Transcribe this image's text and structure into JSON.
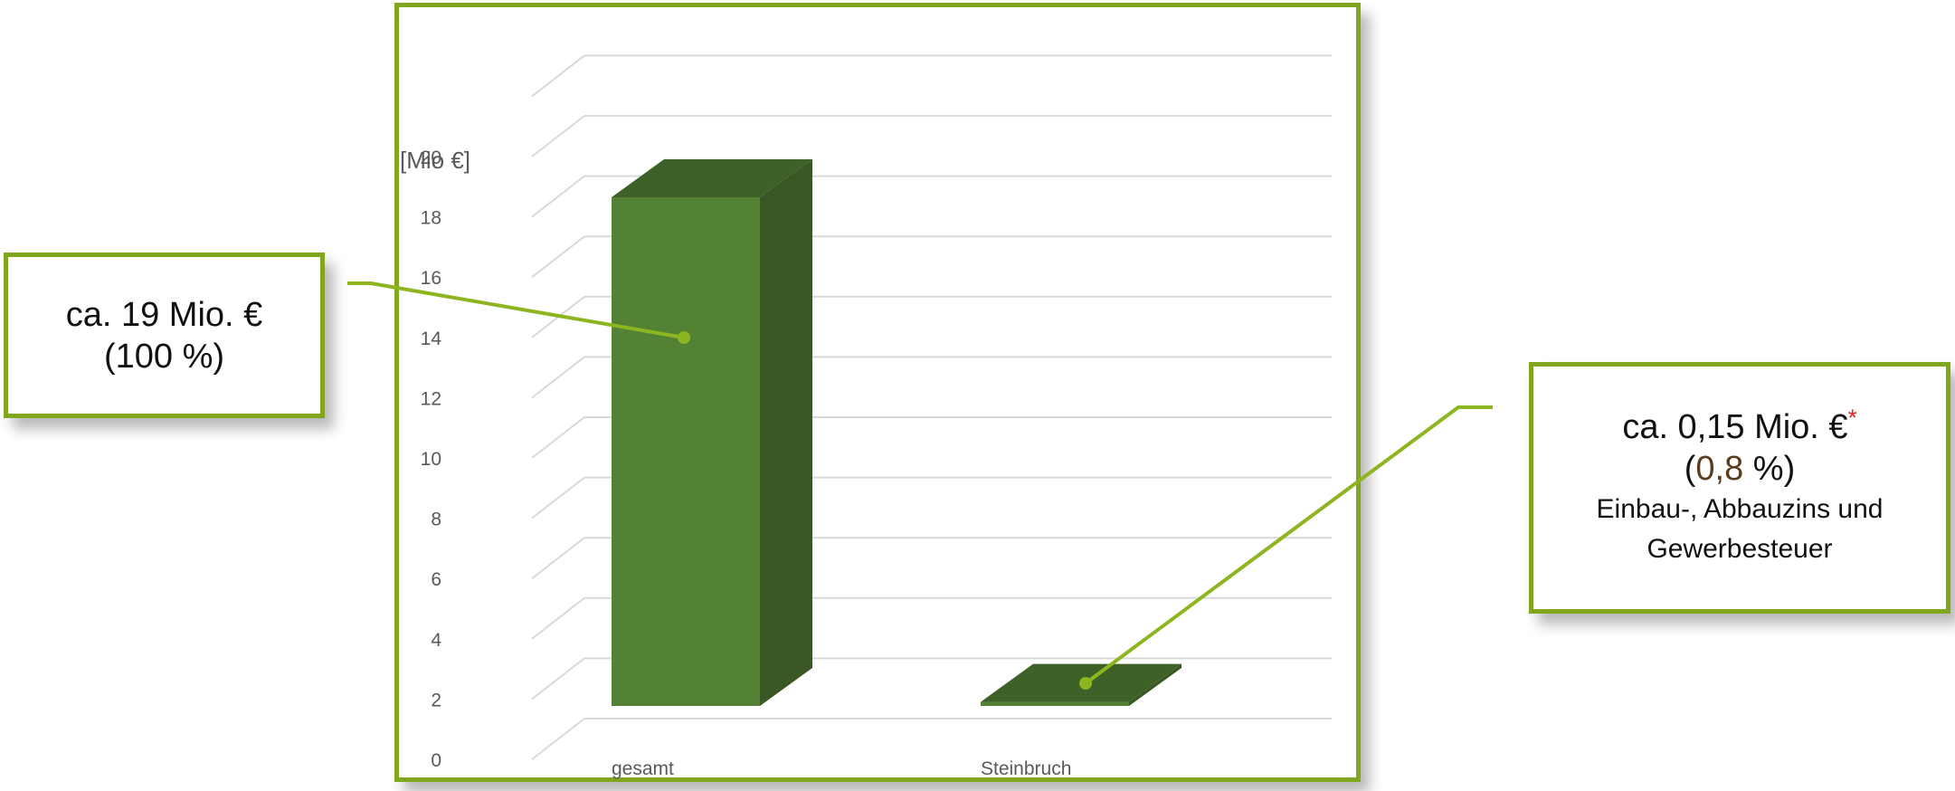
{
  "chart_data": {
    "type": "bar",
    "style": "3d-column",
    "categories": [
      "gesamt",
      "Steinbruch"
    ],
    "values": [
      19,
      0.15
    ],
    "ylabel": "[Mio €]",
    "ylim": [
      0,
      20
    ],
    "yticks": [
      "0",
      "2",
      "4",
      "6",
      "8",
      "10",
      "12",
      "14",
      "16",
      "18",
      "20"
    ],
    "grid": true,
    "bar_color": "#548235"
  },
  "callouts": {
    "left": {
      "line1": "ca. 19 Mio. €",
      "line2": "(100 %)"
    },
    "right": {
      "line1": "ca. 0,15 Mio. €",
      "star": "*",
      "line2_open": "(",
      "line2_value": "0,8",
      "line2_close": " %)",
      "line3": "Einbau-, Abbauzins und",
      "line4": "Gewerbesteuer"
    }
  },
  "colors": {
    "frame": "#7fa61c",
    "bar_front": "#548235",
    "bar_side": "#385723",
    "bar_top": "#3e6127",
    "star": "#e0201e"
  }
}
